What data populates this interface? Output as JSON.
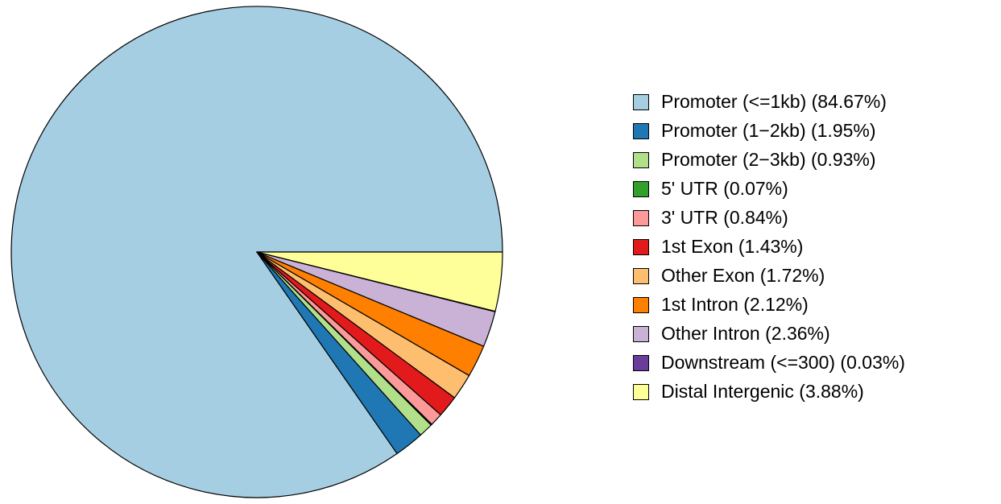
{
  "chart_data": {
    "type": "pie",
    "title": "",
    "legend_position": "right",
    "start_angle_deg": 0,
    "direction": "counterclockwise",
    "stroke_color": "#000000",
    "slices": [
      {
        "label": "Promoter (<=1kb)",
        "value": 84.67,
        "color": "#a6cee3",
        "legend_label": "Promoter (<=1kb) (84.67%)"
      },
      {
        "label": "Promoter (1−2kb)",
        "value": 1.95,
        "color": "#1f78b4",
        "legend_label": "Promoter (1−2kb) (1.95%)"
      },
      {
        "label": "Promoter (2−3kb)",
        "value": 0.93,
        "color": "#b2df8a",
        "legend_label": "Promoter (2−3kb) (0.93%)"
      },
      {
        "label": "5' UTR",
        "value": 0.07,
        "color": "#33a02c",
        "legend_label": "5' UTR (0.07%)"
      },
      {
        "label": "3' UTR",
        "value": 0.84,
        "color": "#fb9a99",
        "legend_label": "3' UTR (0.84%)"
      },
      {
        "label": "1st Exon",
        "value": 1.43,
        "color": "#e31a1c",
        "legend_label": "1st Exon (1.43%)"
      },
      {
        "label": "Other Exon",
        "value": 1.72,
        "color": "#fdbf6f",
        "legend_label": "Other Exon (1.72%)"
      },
      {
        "label": "1st Intron",
        "value": 2.12,
        "color": "#ff7f00",
        "legend_label": "1st Intron (2.12%)"
      },
      {
        "label": "Other Intron",
        "value": 2.36,
        "color": "#cab2d6",
        "legend_label": "Other Intron (2.36%)"
      },
      {
        "label": "Downstream (<=300)",
        "value": 0.03,
        "color": "#6a3d9a",
        "legend_label": "Downstream (<=300) (0.03%)"
      },
      {
        "label": "Distal Intergenic",
        "value": 3.88,
        "color": "#ffff99",
        "legend_label": "Distal Intergenic (3.88%)"
      }
    ]
  }
}
